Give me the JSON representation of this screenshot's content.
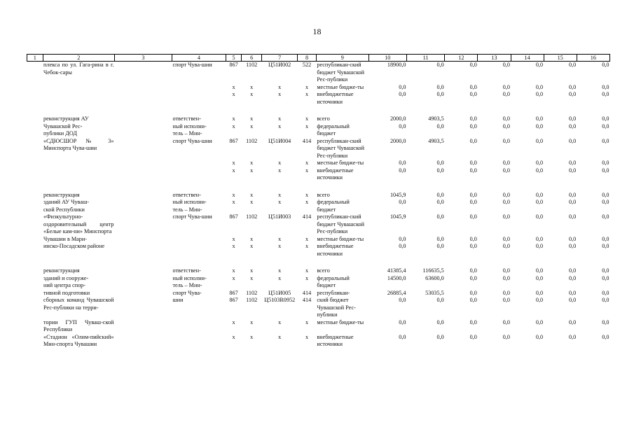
{
  "page_number": "18",
  "columns": [
    "1",
    "2",
    "3",
    "4",
    "5",
    "6",
    "7",
    "8",
    "9",
    "10",
    "11",
    "12",
    "13",
    "14",
    "15",
    "16"
  ],
  "rows": [
    {
      "c2": "плекса по ул. Гага-рина в г. Чебок-сары",
      "c4": "спорт Чува-шии",
      "c5": "867",
      "c6": "1102",
      "c7": "Ц51И002",
      "c8": "522",
      "c9": "республикан-ский бюджет Чувашской Рес-публики",
      "v": [
        "18900,0",
        "0,0",
        "0,0",
        "0,0",
        "0,0",
        "0,0",
        "0,0"
      ]
    },
    {
      "c2": "",
      "c4": "",
      "c5": "х",
      "c6": "х",
      "c7": "х",
      "c8": "х",
      "c9": "местные бюдже-ты",
      "v": [
        "0,0",
        "0,0",
        "0,0",
        "0,0",
        "0,0",
        "0,0",
        "0,0"
      ]
    },
    {
      "c2": "",
      "c4": "",
      "c5": "х",
      "c6": "х",
      "c7": "х",
      "c8": "х",
      "c9": "внебюджетные источники",
      "v": [
        "0,0",
        "0,0",
        "0,0",
        "0,0",
        "0,0",
        "0,0",
        "0,0"
      ]
    },
    {
      "gap": true
    },
    {
      "c2": "реконструкция АУ",
      "c4": "ответствен-",
      "c5": "х",
      "c6": "х",
      "c7": "х",
      "c8": "х",
      "c9": "всего",
      "v": [
        "2000,0",
        "4903,5",
        "0,0",
        "0,0",
        "0,0",
        "0,0",
        "0,0"
      ]
    },
    {
      "c2": "Чувашской Рес-",
      "c4": "ный исполни-",
      "c5": "х",
      "c6": "х",
      "c7": "х",
      "c8": "х",
      "c9": "федеральный",
      "v": [
        "0,0",
        "0,0",
        "0,0",
        "0,0",
        "0,0",
        "0,0",
        "0,0"
      ]
    },
    {
      "c2": "публики ДОД",
      "c4": "тель – Мин-",
      "c5": "",
      "c6": "",
      "c7": "",
      "c8": "",
      "c9": "бюджет",
      "v": [
        "",
        "",
        "",
        "",
        "",
        "",
        ""
      ]
    },
    {
      "c2": "«СДЮСШОР № 3» Минспорта Чува-шии",
      "c4": "спорт Чува-шии",
      "c5": "867",
      "c6": "1102",
      "c7": "Ц51И004",
      "c8": "414",
      "c9": "республикан-ский бюджет Чувашской Рес-публики",
      "v": [
        "2000,0",
        "4903,5",
        "0,0",
        "0,0",
        "0,0",
        "0,0",
        "0,0"
      ]
    },
    {
      "c2": "",
      "c4": "",
      "c5": "х",
      "c6": "х",
      "c7": "х",
      "c8": "х",
      "c9": "местные бюдже-ты",
      "v": [
        "0,0",
        "0,0",
        "0,0",
        "0,0",
        "0,0",
        "0,0",
        "0,0"
      ]
    },
    {
      "c2": "",
      "c4": "",
      "c5": "х",
      "c6": "х",
      "c7": "х",
      "c8": "х",
      "c9": "внебюджетные источники",
      "v": [
        "0,0",
        "0,0",
        "0,0",
        "0,0",
        "0,0",
        "0,0",
        "0,0"
      ]
    },
    {
      "gap": true
    },
    {
      "c2": "реконструкция",
      "c4": "ответствен-",
      "c5": "х",
      "c6": "х",
      "c7": "х",
      "c8": "х",
      "c9": "всего",
      "v": [
        "1045,9",
        "0,0",
        "0,0",
        "0,0",
        "0,0",
        "0,0",
        "0,0"
      ]
    },
    {
      "c2": "зданий АУ Чуваш-",
      "c4": "ный исполни-",
      "c5": "х",
      "c6": "х",
      "c7": "х",
      "c8": "х",
      "c9": "федеральный",
      "v": [
        "0,0",
        "0,0",
        "0,0",
        "0,0",
        "0,0",
        "0,0",
        "0,0"
      ]
    },
    {
      "c2": "ской Республики",
      "c4": "тель – Мин-",
      "c5": "",
      "c6": "",
      "c7": "",
      "c8": "",
      "c9": "бюджет",
      "v": [
        "",
        "",
        "",
        "",
        "",
        "",
        ""
      ]
    },
    {
      "c2": "«Физкультурно-оздоровительный центр «Белые кам-ни» Минспорта",
      "c4": "спорт Чува-шии",
      "c5": "867",
      "c6": "1102",
      "c7": "Ц51И003",
      "c8": "414",
      "c9": "республикан-ский бюджет Чувашской Рес-публики",
      "v": [
        "1045,9",
        "0,0",
        "0,0",
        "0,0",
        "0,0",
        "0,0",
        "0,0"
      ]
    },
    {
      "c2": "Чувашии в Мари-",
      "c4": "",
      "c5": "х",
      "c6": "х",
      "c7": "х",
      "c8": "х",
      "c9": "местные бюдже-ты",
      "v": [
        "0,0",
        "0,0",
        "0,0",
        "0,0",
        "0,0",
        "0,0",
        "0,0"
      ]
    },
    {
      "c2": "инско-Посадском районе",
      "c4": "",
      "c5": "х",
      "c6": "х",
      "c7": "х",
      "c8": "х",
      "c9": "внебюджетные источники",
      "v": [
        "0,0",
        "0,0",
        "0,0",
        "0,0",
        "0,0",
        "0,0",
        "0,0"
      ]
    },
    {
      "gap": true
    },
    {
      "c2": "реконструкция",
      "c4": "ответствен-",
      "c5": "х",
      "c6": "х",
      "c7": "х",
      "c8": "х",
      "c9": "всего",
      "v": [
        "41385,4",
        "116635,5",
        "0,0",
        "0,0",
        "0,0",
        "0,0",
        "0,0"
      ]
    },
    {
      "c2": "зданий и сооруже-",
      "c4": "ный исполни-",
      "c5": "х",
      "c6": "х",
      "c7": "х",
      "c8": "х",
      "c9": "федеральный",
      "v": [
        "14500,0",
        "63600,0",
        "0,0",
        "0,0",
        "0,0",
        "0,0",
        "0,0"
      ]
    },
    {
      "c2": "ний центра спор-",
      "c4": "тель – Мин-",
      "c5": "",
      "c6": "",
      "c7": "",
      "c8": "",
      "c9": "бюджет",
      "v": [
        "",
        "",
        "",
        "",
        "",
        "",
        ""
      ]
    },
    {
      "c2": "тивной подготовки",
      "c4": "спорт Чува-",
      "c5": "867",
      "c6": "1102",
      "c7": "Ц51И005",
      "c8": "414",
      "c9": "республикан-",
      "v": [
        "26885,4",
        "53035,5",
        "0,0",
        "0,0",
        "0,0",
        "0,0",
        "0,0"
      ]
    },
    {
      "c2": "сборных команд Чувашской Рес-публики на терри-",
      "c4": "шии",
      "c5": "867",
      "c6": "1102",
      "c7": "Ц5103R0952",
      "c8": "414",
      "c9": "ский бюджет Чувашской Рес-публики",
      "v": [
        "0,0",
        "0,0",
        "0,0",
        "0,0",
        "0,0",
        "0,0",
        "0,0"
      ]
    },
    {
      "c2": "тории ГУП Чуваш-ской Республики",
      "c4": "",
      "c5": "х",
      "c6": "х",
      "c7": "х",
      "c8": "х",
      "c9": "местные бюдже-ты",
      "v": [
        "0,0",
        "0,0",
        "0,0",
        "0,0",
        "0,0",
        "0,0",
        "0,0"
      ]
    },
    {
      "c2": "«Стадион «Олим-пийский» Мин-спорта Чувашии",
      "c4": "",
      "c5": "х",
      "c6": "х",
      "c7": "х",
      "c8": "х",
      "c9": "внебюджетные источники",
      "v": [
        "0,0",
        "0,0",
        "0,0",
        "0,0",
        "0,0",
        "0,0",
        "0,0"
      ]
    }
  ]
}
